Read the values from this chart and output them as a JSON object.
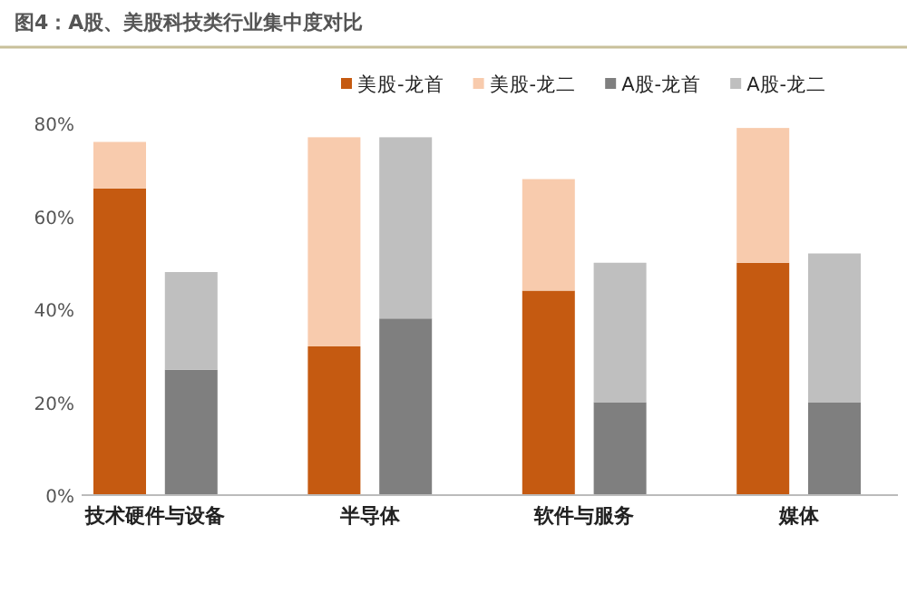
{
  "chart_data": {
    "type": "bar",
    "title": "图4：A股、美股科技类行业集中度对比",
    "categories": [
      "技术硬件与设备",
      null,
      null,
      "半导体",
      null,
      null,
      "软件与服务",
      null,
      null,
      "媒体",
      null
    ],
    "stacked": true,
    "series": [
      {
        "name": "美股-龙首",
        "color": "#c55a11",
        "values": [
          66,
          null,
          null,
          32,
          null,
          null,
          44,
          null,
          null,
          50,
          null
        ]
      },
      {
        "name": "美股-龙二",
        "color": "#f8cbad",
        "values": [
          10,
          null,
          null,
          45,
          null,
          null,
          24,
          null,
          null,
          29,
          null
        ]
      },
      {
        "name": "A股-龙首",
        "color": "#7f7f7f",
        "values": [
          null,
          27,
          null,
          null,
          38,
          null,
          null,
          20,
          null,
          null,
          20
        ]
      },
      {
        "name": "A股-龙二",
        "color": "#bfbfbf",
        "values": [
          null,
          21,
          null,
          null,
          39,
          null,
          null,
          30,
          null,
          null,
          32
        ]
      }
    ],
    "ylim": [
      0,
      80
    ],
    "yticks": [
      {
        "value": 0,
        "label": "0%"
      },
      {
        "value": 20,
        "label": "20%"
      },
      {
        "value": 40,
        "label": "40%"
      },
      {
        "value": 60,
        "label": "60%"
      },
      {
        "value": 80,
        "label": "80%"
      }
    ],
    "grid": false,
    "legend": "top"
  }
}
